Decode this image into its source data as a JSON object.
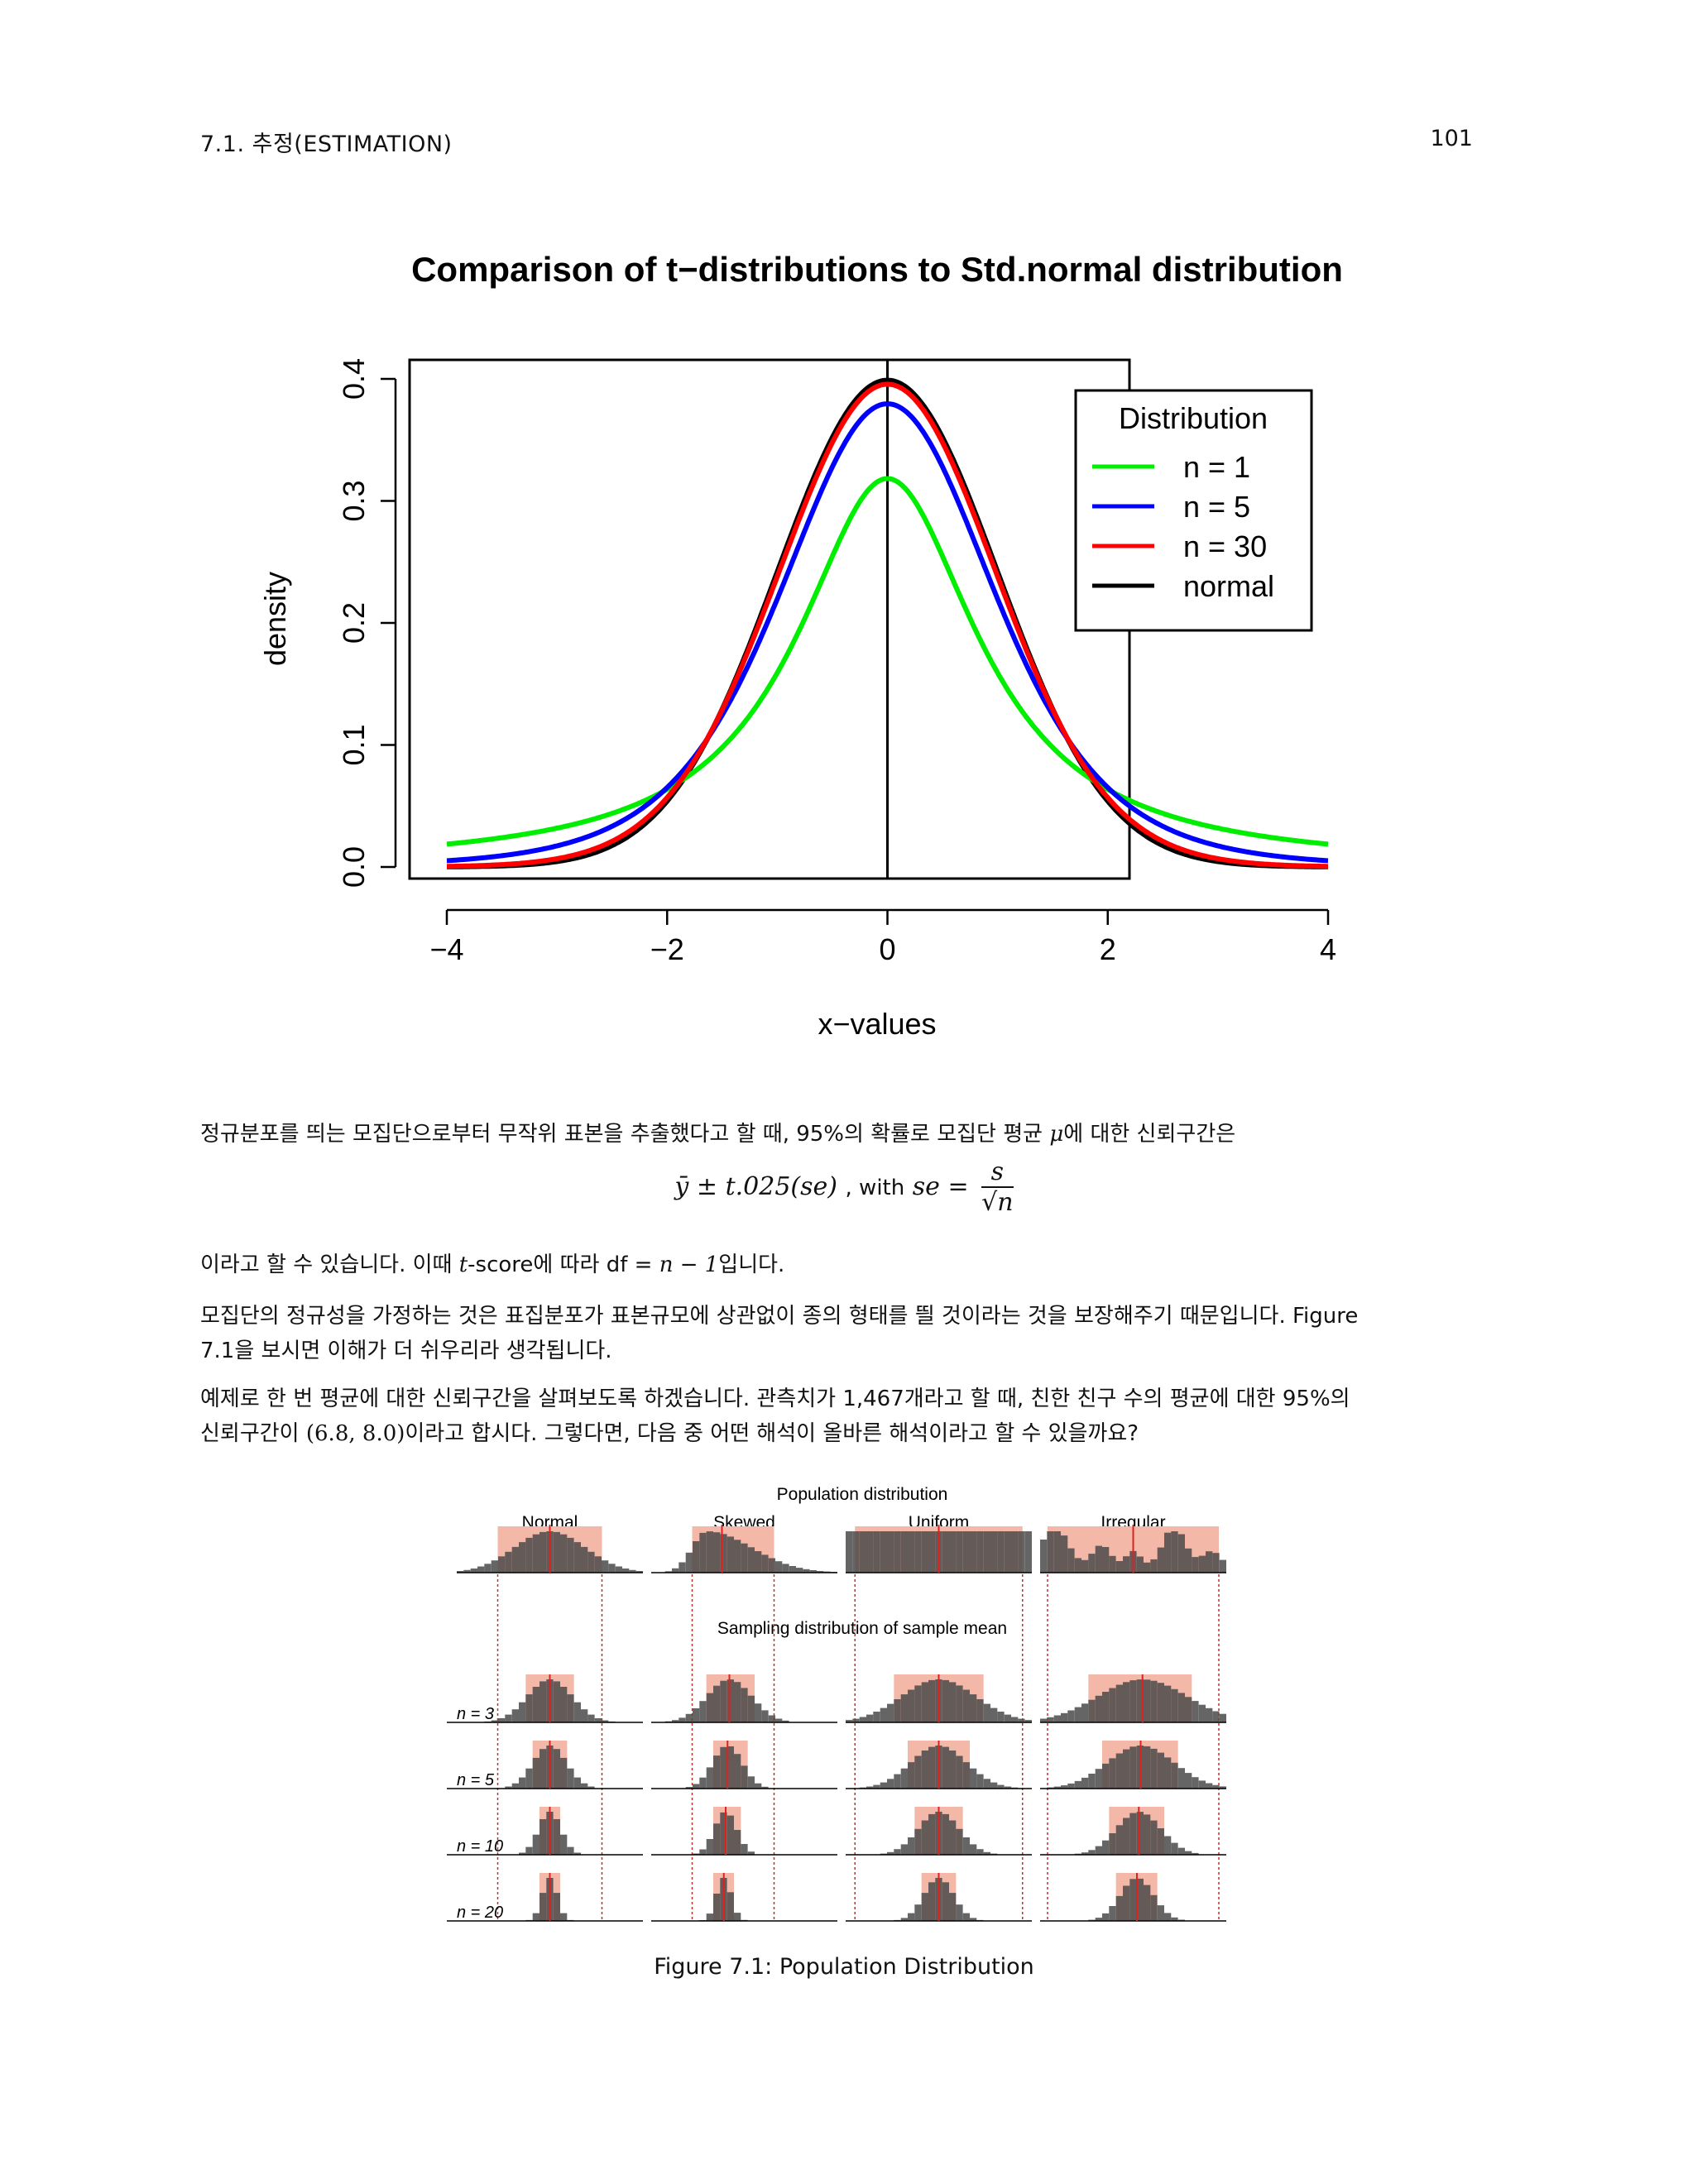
{
  "header": {
    "section": "7.1.  추정(ESTIMATION)",
    "page_number": "101"
  },
  "chart_data": [
    {
      "type": "line",
      "title": "Comparison of t−distributions to Std.normal distribution",
      "xlabel": "x−values",
      "ylabel": "density",
      "xlim": [
        -4,
        4
      ],
      "ylim": [
        0,
        0.4
      ],
      "xticks": [
        "−4",
        "−2",
        "0",
        "2",
        "4"
      ],
      "yticks": [
        "0.0",
        "0.1",
        "0.2",
        "0.3",
        "0.4"
      ],
      "legend_title": "Distribution",
      "legend_position": "top-right",
      "reference_line_x": 0,
      "series": [
        {
          "name": "n = 1",
          "df": 1,
          "color": "#00ee00",
          "peak": 0.318
        },
        {
          "name": "n = 5",
          "df": 5,
          "color": "#0000ff",
          "peak": 0.38
        },
        {
          "name": "n = 30",
          "df": 30,
          "color": "#ff0000",
          "peak": 0.396
        },
        {
          "name": "normal",
          "df": null,
          "color": "#000000",
          "peak": 0.399
        }
      ]
    },
    {
      "type": "bar",
      "title": "Population distribution",
      "subtitle": "Sampling distribution of sample mean",
      "columns": [
        "Normal",
        "Skewed",
        "Uniform",
        "Irregular"
      ],
      "rows": [
        "n = 3",
        "n = 5",
        "n = 10",
        "n = 20"
      ],
      "bar_color": "#4a4a4a",
      "highlight_color": "#f4b8a8",
      "marker_color": "#dd2222"
    }
  ],
  "body": {
    "p1_a": "정규분포를 띄는 모집단으로부터 무작위 표본을 추출했다고 할 때, 95%의 확률로 모집단 평균 ",
    "p1_mu": "μ",
    "p1_b": "에 대한 신뢰구간은",
    "eq_left": "ȳ ± t.025(se)",
    "eq_with": ", with",
    "eq_se": "se =",
    "eq_num": "s",
    "eq_den": "√n",
    "p2_a": "이라고 할 수 있습니다. 이때 ",
    "p2_t": "t",
    "p2_b": "-score에 따라 df = ",
    "p2_n": "n − 1",
    "p2_c": "입니다.",
    "p3_line1": "모집단의 정규성을 가정하는 것은 표집분포가 표본규모에 상관없이 종의 형태를 띌 것이라는 것을 보장해주기 때문입니다. Figure",
    "p3_line2": "7.1을 보시면 이해가 더 쉬우리라 생각됩니다.",
    "p4_line1": "예제로 한 번 평균에 대한 신뢰구간을 살펴보도록 하겠습니다. 관측치가 1,467개라고 할 때, 친한 친구 수의 평균에 대한 95%의",
    "p4_a": "신뢰구간이 ",
    "p4_ci": "(6.8, 8.0)",
    "p4_b": "이라고 합시다. 그렇다면, 다음 중 어떤 해석이 올바른 해석이라고 할 수 있을까요?"
  },
  "caption": "Figure 7.1: Population Distribution"
}
